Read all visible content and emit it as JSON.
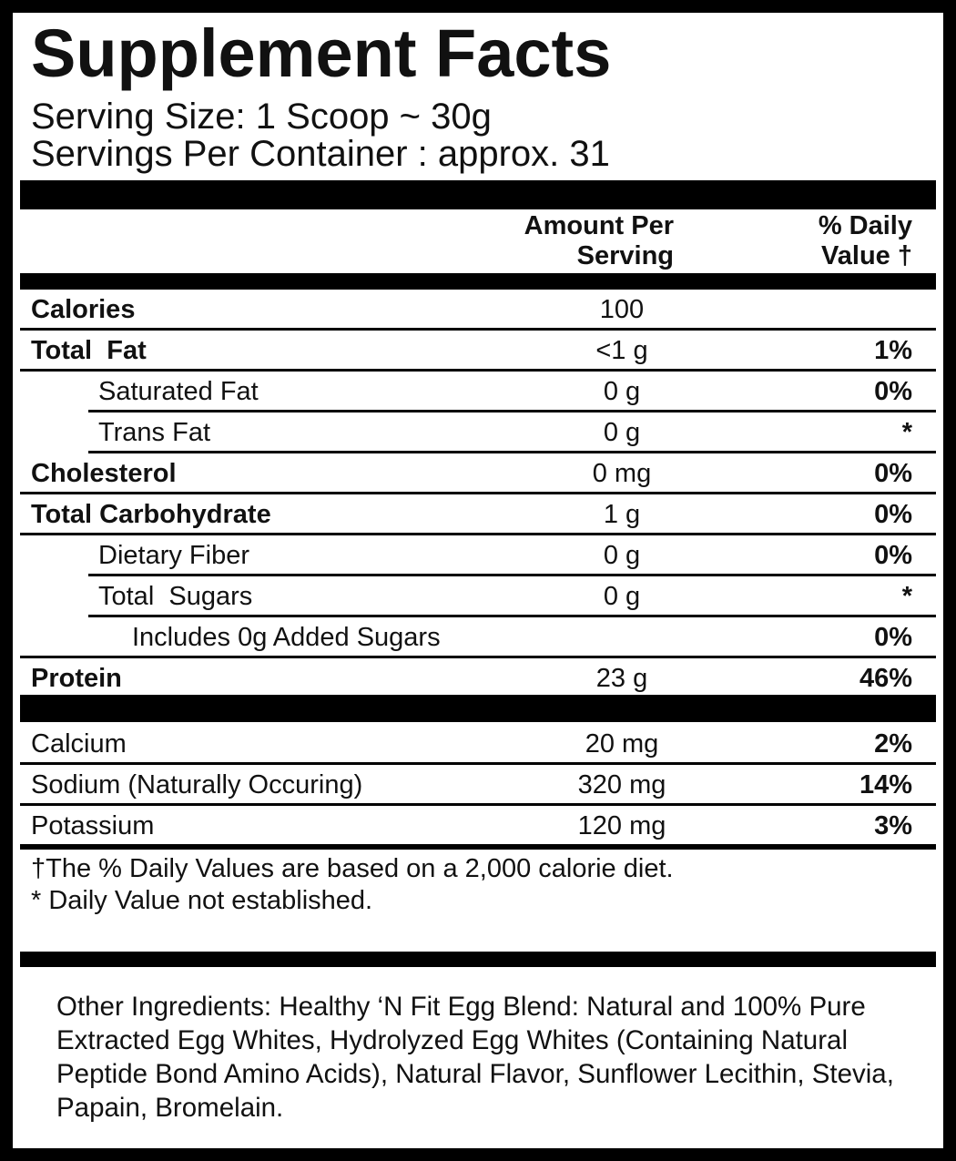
{
  "title": "Supplement Facts",
  "serving_size": "Serving Size: 1 Scoop ~ 30g",
  "servings_per_container": "Servings Per Container : approx. 31",
  "header": {
    "amount": "Amount Per Serving",
    "daily_value": "% Daily Value †"
  },
  "rows": [
    {
      "name": "Calories",
      "amount": "100"
    },
    {
      "name": "Total  Fat",
      "amount": "<1 g",
      "daily_value": "1%"
    },
    {
      "name": "Saturated Fat",
      "amount": "0 g",
      "daily_value": "0%"
    },
    {
      "name": "Trans Fat",
      "amount": "0 g",
      "daily_value": "*"
    },
    {
      "name": "Cholesterol",
      "amount": "0 mg",
      "daily_value": "0%"
    },
    {
      "name": "Total Carbohydrate",
      "amount": "1 g",
      "daily_value": "0%"
    },
    {
      "name": "Dietary Fiber",
      "amount": "0 g",
      "daily_value": "0%"
    },
    {
      "name": "Total  Sugars",
      "amount": "0 g",
      "daily_value": "*"
    },
    {
      "name": "Includes 0g Added Sugars",
      "daily_value": "0%"
    },
    {
      "name": "Protein",
      "amount": "23 g",
      "daily_value": "46%"
    }
  ],
  "minerals": [
    {
      "name": "Calcium",
      "amount": "20 mg",
      "daily_value": "2%"
    },
    {
      "name": "Sodium (Naturally Occuring)",
      "amount": "320 mg",
      "daily_value": "14%"
    },
    {
      "name": "Potassium",
      "amount": "120 mg",
      "daily_value": "3%"
    }
  ],
  "footnotes": [
    "†The % Daily Values are based on a 2,000 calorie diet.",
    "* Daily Value not established."
  ],
  "ingredients": "Other Ingredients: Healthy ‘N Fit Egg Blend: Natural and 100% Pure Extracted Egg Whites, Hydrolyzed Egg Whites (Containing Natural Peptide Bond Amino Acids), Natural Flavor, Sunflower Lecithin, Stevia, Papain, Bromelain."
}
